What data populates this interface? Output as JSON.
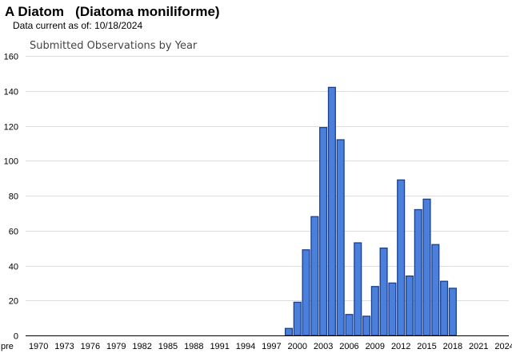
{
  "header": {
    "common_name": "A Diatom",
    "scientific_name": "(Diatoma moniliforme)",
    "data_current_label": "Data current as of:",
    "data_current_date": "10/18/2024"
  },
  "colors": {
    "bar_fill": "#4a7fdc",
    "bar_stroke": "#1a3f8f",
    "grid": "#dddddd",
    "axis": "#000000"
  },
  "chart_data": {
    "type": "bar",
    "title": "Submitted Observations by Year",
    "xlabel": "",
    "ylabel": "",
    "ylim": [
      0,
      160
    ],
    "yticks": [
      0,
      20,
      40,
      60,
      80,
      100,
      120,
      140,
      160
    ],
    "grid": true,
    "legend": "none",
    "categories": [
      "pre 1970",
      "1970",
      "1971",
      "1972",
      "1973",
      "1974",
      "1975",
      "1976",
      "1977",
      "1978",
      "1979",
      "1980",
      "1981",
      "1982",
      "1983",
      "1984",
      "1985",
      "1986",
      "1987",
      "1988",
      "1989",
      "1990",
      "1991",
      "1992",
      "1993",
      "1994",
      "1995",
      "1996",
      "1997",
      "1998",
      "1999",
      "2000",
      "2001",
      "2002",
      "2003",
      "2004",
      "2005",
      "2006",
      "2007",
      "2008",
      "2009",
      "2010",
      "2011",
      "2012",
      "2013",
      "2014",
      "2015",
      "2016",
      "2017",
      "2018",
      "2019",
      "2020",
      "2021",
      "2022",
      "2023",
      "2024"
    ],
    "tick_labels": [
      "pre",
      "1970",
      "1973",
      "1976",
      "1979",
      "1982",
      "1985",
      "1988",
      "1991",
      "1994",
      "1997",
      "2000",
      "2003",
      "2006",
      "2009",
      "2012",
      "2015",
      "2018",
      "2021",
      "2024"
    ],
    "values": [
      0,
      0,
      0,
      0,
      0,
      0,
      0,
      0,
      0,
      0,
      0,
      0,
      0,
      0,
      0,
      0,
      0,
      0,
      0,
      0,
      0,
      0,
      0,
      0,
      0,
      0,
      0,
      0,
      0,
      0,
      4,
      19,
      49,
      68,
      119,
      142,
      112,
      12,
      53,
      11,
      28,
      50,
      30,
      89,
      34,
      72,
      78,
      52,
      31,
      27,
      0,
      0,
      0,
      0,
      0,
      0
    ]
  }
}
